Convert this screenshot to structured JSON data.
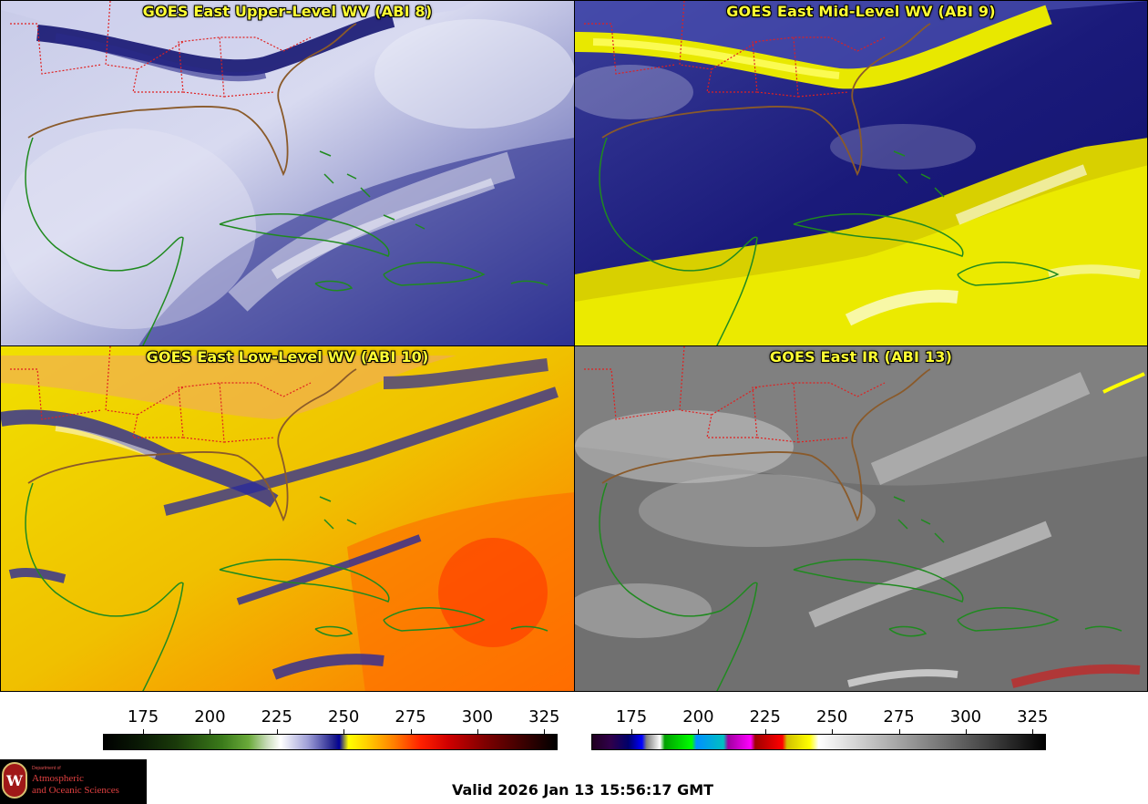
{
  "panels": [
    {
      "title": "GOES East Upper-Level WV (ABI 8)",
      "colormap": "wv"
    },
    {
      "title": "GOES East Mid-Level WV (ABI 9)",
      "colormap": "wv"
    },
    {
      "title": "GOES East Low-Level WV (ABI 10)",
      "colormap": "wv"
    },
    {
      "title": "GOES East IR (ABI 13)",
      "colormap": "ir"
    }
  ],
  "colorbars": [
    {
      "ticks": [
        "175",
        "200",
        "225",
        "250",
        "275",
        "300",
        "325"
      ],
      "range": [
        160,
        330
      ]
    },
    {
      "ticks": [
        "175",
        "200",
        "225",
        "250",
        "275",
        "300",
        "325"
      ],
      "range": [
        160,
        330
      ]
    }
  ],
  "colors": {
    "title": "#ffff33",
    "coastline": "#1f8a1f",
    "state_borders": "#e02020",
    "us_coast": "#8a5a2a"
  },
  "logo": {
    "seal_letter": "W",
    "department": "Department of",
    "line1": "Atmospheric",
    "line2": "and Oceanic Sciences"
  },
  "valid_text": "Valid 2026 Jan 13 15:56:17 GMT"
}
